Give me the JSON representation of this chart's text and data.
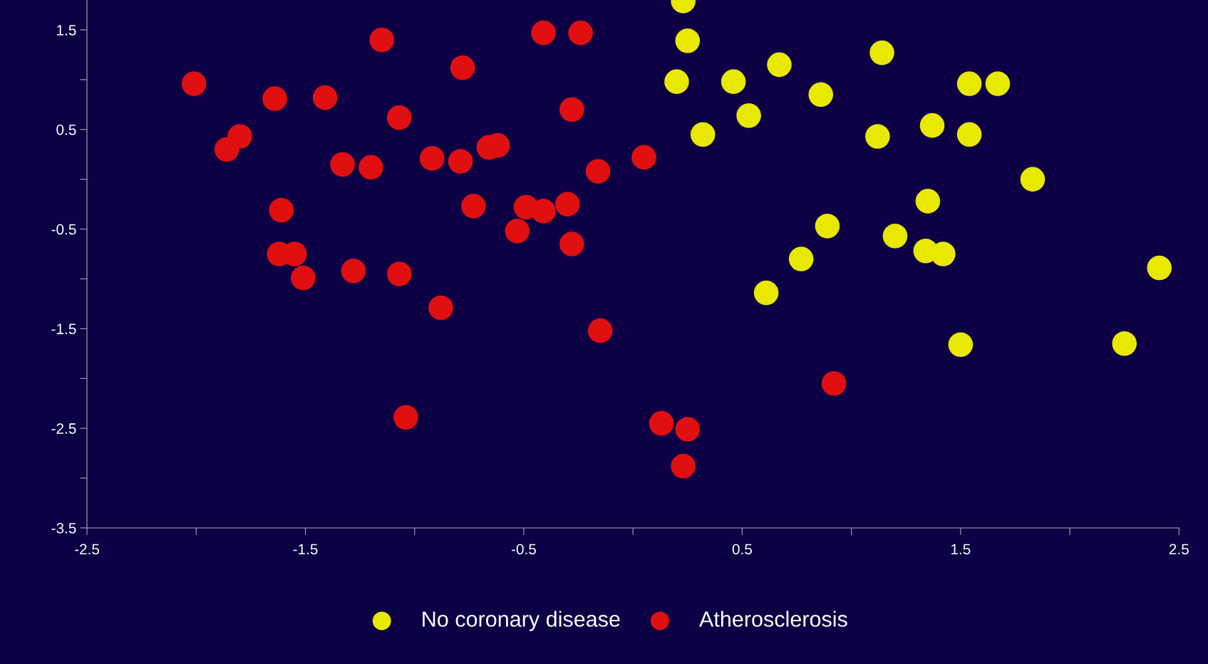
{
  "chart_data": {
    "type": "scatter",
    "xlim": [
      -2.5,
      2.5
    ],
    "xticks": [
      -2.5,
      {
        "value": -2,
        "label": null
      },
      -1.5,
      {
        "value": -1,
        "label": null
      },
      -0.5,
      {
        "value": 0,
        "label": null
      },
      0.5,
      {
        "value": 1,
        "label": null
      },
      1.5,
      {
        "value": 2,
        "label": null
      },
      2.5
    ],
    "ylim": [
      -3.5,
      1.8
    ],
    "yticks": [
      -3.5,
      {
        "value": -3,
        "label": null
      },
      -2.5,
      {
        "value": -2,
        "label": null
      },
      -1.5,
      {
        "value": -1,
        "label": null
      },
      -0.5,
      {
        "value": 0,
        "label": null
      },
      0.5,
      {
        "value": 1,
        "label": null
      },
      1.5
    ],
    "grid": false,
    "legend": "bottom",
    "marker": "circle",
    "series": [
      {
        "name": "No coronary disease",
        "color": "#e8e800",
        "x": [
          0.23,
          0.25,
          0.2,
          0.32,
          0.46,
          0.53,
          0.67,
          0.86,
          0.89,
          0.77,
          0.61,
          1.12,
          1.14,
          1.2,
          1.35,
          1.37,
          1.34,
          1.42,
          1.54,
          1.67,
          1.54,
          1.5,
          1.83,
          2.25,
          2.41
        ],
        "values": [
          1.79,
          1.39,
          0.98,
          0.45,
          0.98,
          0.64,
          1.15,
          0.85,
          -0.47,
          -0.8,
          -1.14,
          0.43,
          1.27,
          -0.57,
          -0.22,
          0.54,
          -0.72,
          -0.75,
          0.96,
          0.96,
          0.45,
          -1.66,
          0.0,
          -1.65,
          -0.89
        ]
      },
      {
        "name": "Atherosclerosis",
        "color": "#e01010",
        "x": [
          -2.01,
          -1.86,
          -1.8,
          -1.64,
          -1.61,
          -1.62,
          -1.55,
          -1.51,
          -1.41,
          -1.33,
          -1.2,
          -1.28,
          -1.15,
          -1.07,
          -1.07,
          -1.04,
          -0.92,
          -0.88,
          -0.79,
          -0.78,
          -0.73,
          -0.66,
          -0.62,
          -0.53,
          -0.49,
          -0.41,
          -0.41,
          -0.3,
          -0.28,
          -0.24,
          -0.28,
          -0.16,
          -0.15,
          0.05,
          0.13,
          0.25,
          0.23,
          0.92
        ],
        "values": [
          0.96,
          0.3,
          0.43,
          0.81,
          -0.31,
          -0.75,
          -0.75,
          -0.99,
          0.82,
          0.15,
          0.12,
          -0.92,
          1.4,
          0.62,
          -0.95,
          -2.39,
          0.21,
          -1.29,
          0.18,
          1.12,
          -0.27,
          0.32,
          0.34,
          -0.52,
          -0.28,
          1.47,
          -0.32,
          -0.25,
          0.7,
          1.47,
          -0.65,
          0.08,
          -1.52,
          0.22,
          -2.45,
          -2.51,
          -2.88,
          -2.05
        ]
      }
    ]
  }
}
